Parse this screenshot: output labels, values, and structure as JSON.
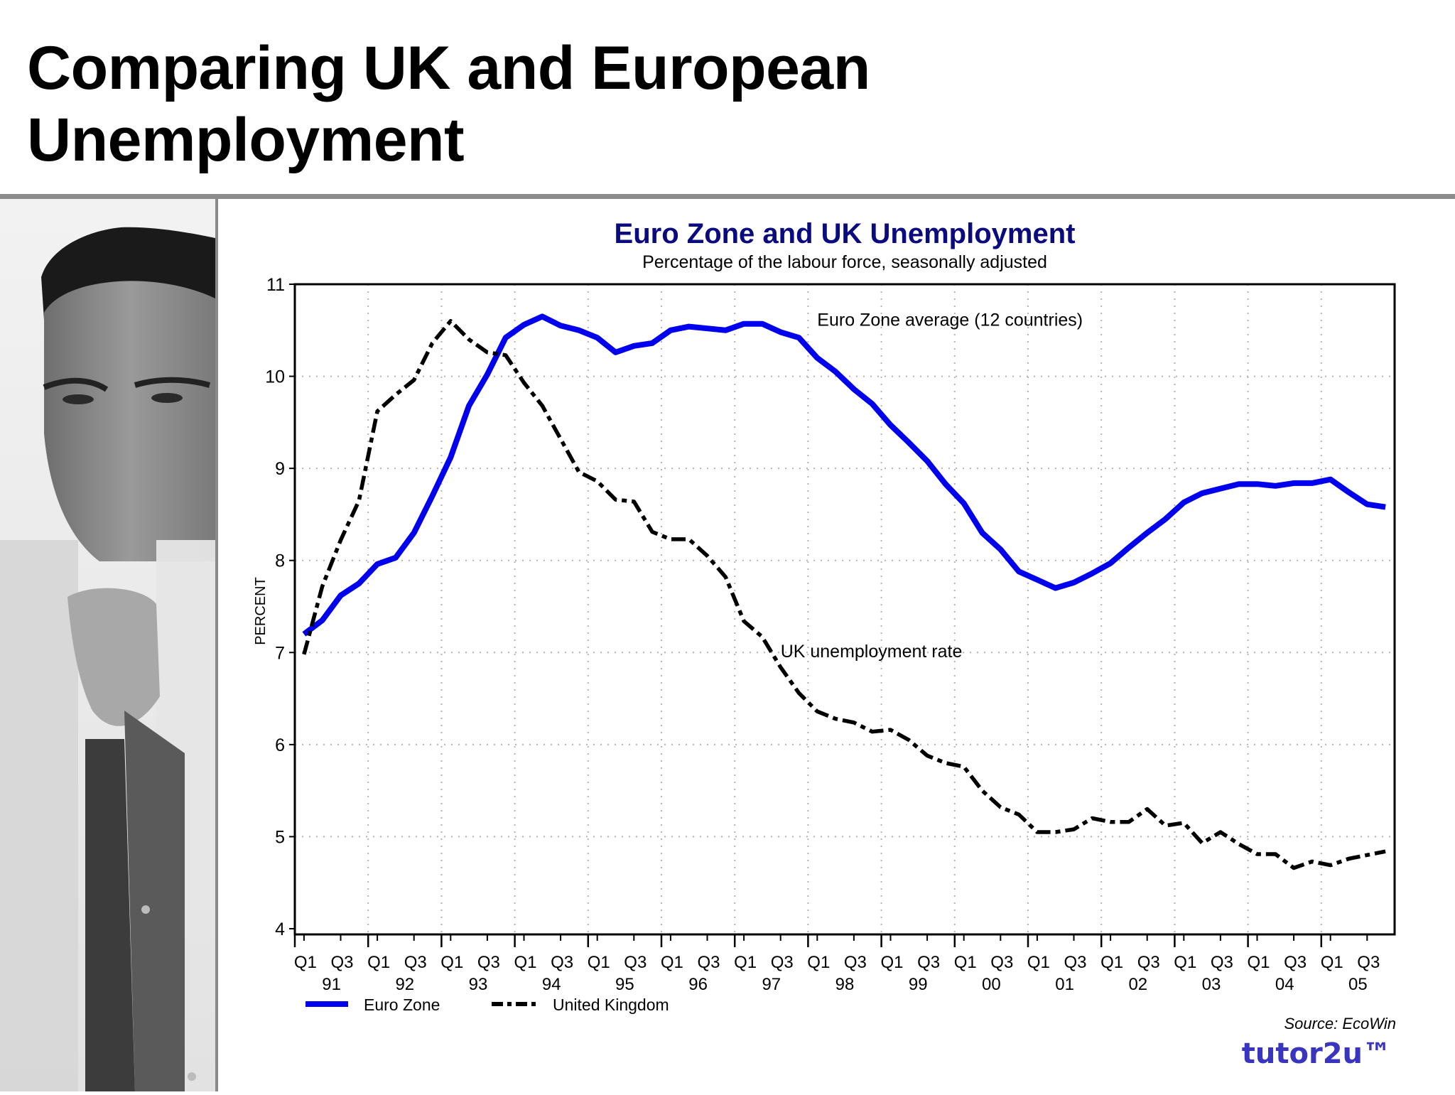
{
  "slide": {
    "title_line1": "Comparing UK and European",
    "title_line2": "Unemployment",
    "source": "Source: EcoWin",
    "brand": "tutor2u™"
  },
  "colors": {
    "euro_line": "#0000ee",
    "uk_line": "#000000",
    "chart_title": "#0b0b80",
    "brand": "#3a35c0",
    "rule": "#8c8c8c",
    "grid": "#b4b4b4"
  },
  "chart_data": {
    "type": "line",
    "title": "Euro Zone and UK Unemployment",
    "subtitle": "Percentage of the labour force, seasonally adjusted",
    "xlabel": "",
    "ylabel": "PERCENT",
    "ylim": [
      4,
      11
    ],
    "yticks": [
      4,
      5,
      6,
      7,
      8,
      9,
      10,
      11
    ],
    "grid": true,
    "legend_position": "bottom-left",
    "x_years": [
      "91",
      "92",
      "93",
      "94",
      "95",
      "96",
      "97",
      "98",
      "99",
      "00",
      "01",
      "02",
      "03",
      "04",
      "05"
    ],
    "x_quarter_labels": [
      "Q1",
      "Q3"
    ],
    "x": [
      "1991Q1",
      "1991Q2",
      "1991Q3",
      "1991Q4",
      "1992Q1",
      "1992Q2",
      "1992Q3",
      "1992Q4",
      "1993Q1",
      "1993Q2",
      "1993Q3",
      "1993Q4",
      "1994Q1",
      "1994Q2",
      "1994Q3",
      "1994Q4",
      "1995Q1",
      "1995Q2",
      "1995Q3",
      "1995Q4",
      "1996Q1",
      "1996Q2",
      "1996Q3",
      "1996Q4",
      "1997Q1",
      "1997Q2",
      "1997Q3",
      "1997Q4",
      "1998Q1",
      "1998Q2",
      "1998Q3",
      "1998Q4",
      "1999Q1",
      "1999Q2",
      "1999Q3",
      "1999Q4",
      "2000Q1",
      "2000Q2",
      "2000Q3",
      "2000Q4",
      "2001Q1",
      "2001Q2",
      "2001Q3",
      "2001Q4",
      "2002Q1",
      "2002Q2",
      "2002Q3",
      "2002Q4",
      "2003Q1",
      "2003Q2",
      "2003Q3",
      "2003Q4",
      "2004Q1",
      "2004Q2",
      "2004Q3",
      "2004Q4",
      "2005Q1",
      "2005Q2",
      "2005Q3",
      "2005Q4"
    ],
    "series": [
      {
        "name": "Euro Zone",
        "style": "solid",
        "values": [
          7.2,
          7.35,
          7.62,
          7.75,
          7.96,
          8.03,
          8.3,
          8.7,
          9.12,
          9.68,
          10.02,
          10.42,
          10.56,
          10.65,
          10.55,
          10.5,
          10.42,
          10.26,
          10.33,
          10.36,
          10.5,
          10.54,
          10.52,
          10.5,
          10.57,
          10.57,
          10.48,
          10.42,
          10.2,
          10.05,
          9.86,
          9.7,
          9.47,
          9.28,
          9.08,
          8.83,
          8.62,
          8.3,
          8.12,
          7.88,
          7.79,
          7.7,
          7.76,
          7.86,
          7.97,
          8.14,
          8.3,
          8.45,
          8.63,
          8.73,
          8.78,
          8.83,
          8.83,
          8.81,
          8.84,
          8.84,
          8.88,
          8.74,
          8.61,
          8.58
        ]
      },
      {
        "name": "United Kingdom",
        "style": "dash-dot",
        "values": [
          6.98,
          7.72,
          8.22,
          8.65,
          9.62,
          9.8,
          9.96,
          10.36,
          10.6,
          10.4,
          10.26,
          10.23,
          9.93,
          9.68,
          9.32,
          8.96,
          8.86,
          8.66,
          8.64,
          8.31,
          8.23,
          8.23,
          8.05,
          7.82,
          7.34,
          7.17,
          6.84,
          6.56,
          6.36,
          6.28,
          6.24,
          6.14,
          6.16,
          6.05,
          5.88,
          5.8,
          5.76,
          5.5,
          5.32,
          5.24,
          5.05,
          5.05,
          5.08,
          5.2,
          5.16,
          5.16,
          5.3,
          5.12,
          5.15,
          4.93,
          5.05,
          4.92,
          4.81,
          4.81,
          4.66,
          4.73,
          4.69,
          4.76,
          4.8,
          4.84
        ]
      }
    ],
    "annotations": [
      {
        "text": "Euro Zone average (12 countries)",
        "x": "1998Q1",
        "y": 10.55
      },
      {
        "text": "UK unemployment rate",
        "x": "1997Q3",
        "y": 6.95
      }
    ]
  }
}
